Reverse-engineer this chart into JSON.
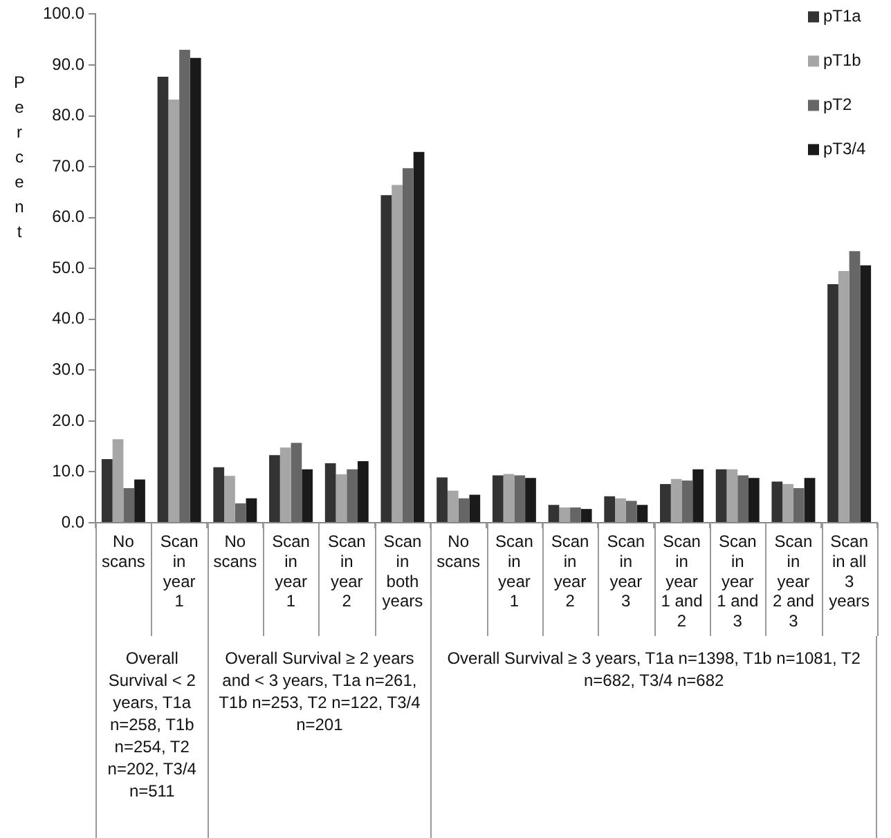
{
  "chart_data": {
    "type": "bar",
    "ylabel": "Percent",
    "categories": [
      "No scans",
      "Scan in year 1",
      "No scans",
      "Scan in year 1",
      "Scan in year 2",
      "Scan in both years",
      "No scans",
      "Scan in year 1",
      "Scan in year 2",
      "Scan in year 3",
      "Scan in year 1 and 2",
      "Scan in year 1 and 3",
      "Scan in year 2 and 3",
      "Scan in all 3 years"
    ],
    "series": [
      {
        "name": "pT1a",
        "color": "#333333",
        "values": [
          12.5,
          87.7,
          10.9,
          13.3,
          11.7,
          64.4,
          8.9,
          9.3,
          3.5,
          5.2,
          7.6,
          10.5,
          8.1,
          46.9
        ]
      },
      {
        "name": "pT1b",
        "color": "#a6a6a6",
        "values": [
          16.4,
          83.2,
          9.2,
          14.8,
          9.5,
          66.4,
          6.3,
          9.6,
          3.0,
          4.8,
          8.6,
          10.5,
          7.6,
          49.5
        ]
      },
      {
        "name": "pT2",
        "color": "#666666",
        "values": [
          6.8,
          93.0,
          3.8,
          15.7,
          10.5,
          69.7,
          4.8,
          9.3,
          3.0,
          4.3,
          8.3,
          9.3,
          6.8,
          53.4
        ]
      },
      {
        "name": "pT3/4",
        "color": "#1a1a1a",
        "values": [
          8.5,
          91.4,
          4.8,
          10.5,
          12.1,
          72.9,
          5.5,
          8.8,
          2.7,
          3.5,
          10.5,
          8.8,
          8.8,
          50.6
        ]
      }
    ],
    "ylim": [
      0,
      100
    ],
    "yticks": [
      {
        "value": 0,
        "label": "0.0"
      },
      {
        "value": 10,
        "label": "10.0"
      },
      {
        "value": 20,
        "label": "20.0"
      },
      {
        "value": 30,
        "label": "30.0"
      },
      {
        "value": 40,
        "label": "40.0"
      },
      {
        "value": 50,
        "label": "50.0"
      },
      {
        "value": 60,
        "label": "60.0"
      },
      {
        "value": 70,
        "label": "70.0"
      },
      {
        "value": 80,
        "label": "80.0"
      },
      {
        "value": 90,
        "label": "90.0"
      },
      {
        "value": 100,
        "label": "100.0"
      }
    ],
    "grid": false,
    "legend": "top right",
    "annotations": [
      "Overall Survival < 2 years, T1a n=258, T1b n=254, T2 n=202, T3/4 n=511",
      "Overall Survival ≥ 2 years and < 3 years, T1a n=261, T1b n=253, T2 n=122, T3/4 n=201",
      "Overall Survival ≥ 3 years, T1a n=1398, T1b n=1081, T2 n=682, T3/4 n=682"
    ]
  }
}
